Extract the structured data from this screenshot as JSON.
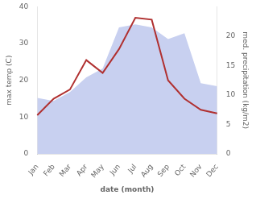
{
  "chart_data": {
    "type": "line",
    "categories": [
      "Jan",
      "Feb",
      "Mar",
      "Apr",
      "May",
      "Jun",
      "Jul",
      "Aug",
      "Sep",
      "Oct",
      "Nov",
      "Dec"
    ],
    "series": [
      {
        "type": "area",
        "axis": "y2",
        "color": "#c8d0f0",
        "values": [
          9.5,
          9.0,
          10.5,
          13.0,
          14.5,
          21.5,
          22.0,
          21.5,
          19.5,
          20.5,
          12.0,
          11.5
        ]
      },
      {
        "type": "line",
        "color": "#b03030",
        "values": [
          10.5,
          15.0,
          17.5,
          25.5,
          22.0,
          28.5,
          37.0,
          36.5,
          20.0,
          15.0,
          12.0,
          11.0
        ]
      }
    ],
    "xlabel": "date (month)",
    "ylabel": "max temp (C)",
    "y2label": "med. precipitation (kg/m2)",
    "ylim": [
      0,
      40
    ],
    "yticks": [
      0,
      10,
      20,
      30,
      40
    ],
    "y2lim": [
      0,
      25
    ],
    "y2ticks": [
      0,
      5,
      10,
      15,
      20
    ],
    "grid": false
  }
}
